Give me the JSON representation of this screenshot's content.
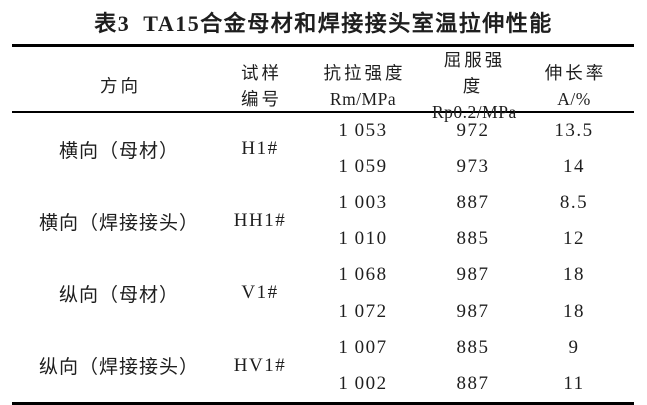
{
  "caption": {
    "label": "表3",
    "text": "TA15合金母材和焊接接头室温拉伸性能"
  },
  "columns": {
    "direction": {
      "line1": "方向"
    },
    "sample": {
      "line1": "试样",
      "line2": "编号"
    },
    "tensile": {
      "line1": "抗拉强度",
      "line2": "Rm/MPa"
    },
    "yield": {
      "line1": "屈服强度",
      "line2": "Rp0.2/MPa"
    },
    "elongation": {
      "line1": "伸长率",
      "line2": "A/%"
    }
  },
  "groups": [
    {
      "direction": "横向（母材）",
      "sample": "H1#",
      "rows": [
        {
          "rm": "1 053",
          "rp": "972",
          "a": "13.5"
        },
        {
          "rm": "1 059",
          "rp": "973",
          "a": "14"
        }
      ]
    },
    {
      "direction": "横向（焊接接头）",
      "sample": "HH1#",
      "rows": [
        {
          "rm": "1 003",
          "rp": "887",
          "a": "8.5"
        },
        {
          "rm": "1 010",
          "rp": "885",
          "a": "12"
        }
      ]
    },
    {
      "direction": "纵向（母材）",
      "sample": "V1#",
      "rows": [
        {
          "rm": "1 068",
          "rp": "987",
          "a": "18"
        },
        {
          "rm": "1 072",
          "rp": "987",
          "a": "18"
        }
      ]
    },
    {
      "direction": "纵向（焊接接头）",
      "sample": "HV1#",
      "rows": [
        {
          "rm": "1 007",
          "rp": "885",
          "a": "9"
        },
        {
          "rm": "1 002",
          "rp": "887",
          "a": "11"
        }
      ]
    }
  ],
  "colors": {
    "text": "#1e1e1e",
    "rule": "#000000",
    "background": "#ffffff"
  }
}
